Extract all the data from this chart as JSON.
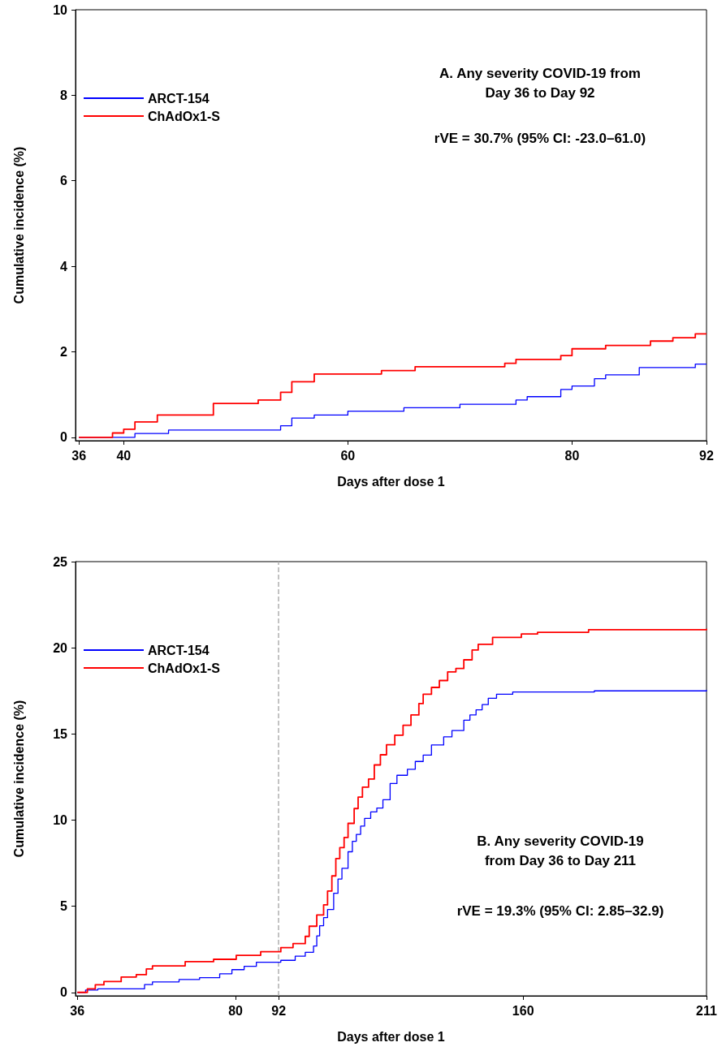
{
  "chart_data": [
    {
      "type": "step",
      "xlabel": "Days after dose 1",
      "ylabel": "Cumulative incidence (%)",
      "annotations": [
        "A. Any severity COVID-19 from\nDay 36 to Day 92",
        "rVE = 30.7% (95% CI: -23.0–61.0)"
      ],
      "xlim": [
        35.7,
        92
      ],
      "xticks": [
        36,
        40,
        60,
        80,
        92
      ],
      "ylim": [
        -0.08,
        10
      ],
      "yticks": [
        0,
        2,
        4,
        6,
        8,
        10
      ],
      "legend": "top left",
      "grid": false,
      "series": [
        {
          "name": "ARCT-154",
          "color": "#0000ff",
          "x": [
            36,
            41,
            44,
            54,
            55,
            57,
            60,
            65,
            70,
            75,
            76,
            79,
            80,
            82,
            83,
            86,
            91,
            92
          ],
          "values": [
            0,
            0.09,
            0.17,
            0.27,
            0.45,
            0.52,
            0.61,
            0.69,
            0.77,
            0.87,
            0.95,
            1.12,
            1.2,
            1.37,
            1.46,
            1.63,
            1.71,
            1.71
          ]
        },
        {
          "name": "ChAdOx1-S",
          "color": "#ff0000",
          "x": [
            36,
            39,
            40,
            41,
            43,
            48,
            52,
            54,
            55,
            57,
            63,
            66,
            74,
            75,
            79,
            80,
            83,
            87,
            89,
            91,
            92
          ],
          "values": [
            0,
            0.1,
            0.19,
            0.36,
            0.52,
            0.79,
            0.87,
            1.05,
            1.3,
            1.48,
            1.56,
            1.65,
            1.73,
            1.82,
            1.91,
            2.07,
            2.15,
            2.25,
            2.33,
            2.42,
            2.42
          ]
        }
      ]
    },
    {
      "type": "step",
      "xlabel": "Days after dose 1",
      "ylabel": "Cumulative incidence (%)",
      "annotations": [
        "B. Any severity COVID-19\nfrom Day 36 to Day 211",
        "rVE = 19.3% (95% CI: 2.85–32.9)"
      ],
      "xlim": [
        35.5,
        211
      ],
      "xticks": [
        36,
        80,
        92,
        160,
        211
      ],
      "ylim": [
        -0.2,
        25
      ],
      "yticks": [
        0,
        5,
        10,
        15,
        20,
        25
      ],
      "legend": "top left",
      "grid": false,
      "ref_lines": [
        {
          "axis": "x",
          "value": 92,
          "color": "#b0b0b0",
          "line_style": "dashed"
        }
      ],
      "series": [
        {
          "name": "ARCT-154",
          "color": "#0000ff",
          "x": [
            36,
            38.3,
            41.7,
            54.7,
            56.9,
            64.3,
            70,
            75.6,
            79,
            82.4,
            85.8,
            92.6,
            96.6,
            99.4,
            101.7,
            102.6,
            103.4,
            104.5,
            105.6,
            107.3,
            108.5,
            109.6,
            111.3,
            112.5,
            113.6,
            114.8,
            115.9,
            117.6,
            119.3,
            121,
            123,
            124.9,
            127.8,
            130,
            132.2,
            134.5,
            137.9,
            140.2,
            143.5,
            145.2,
            146.9,
            148.6,
            150.3,
            152.6,
            157.1,
            179.8,
            211
          ],
          "values": [
            0,
            0.14,
            0.21,
            0.45,
            0.61,
            0.75,
            0.85,
            1.08,
            1.32,
            1.51,
            1.75,
            1.86,
            2.1,
            2.33,
            2.69,
            3.28,
            3.87,
            4.34,
            4.81,
            5.75,
            6.58,
            7.2,
            8.16,
            8.77,
            9.17,
            9.65,
            10.1,
            10.47,
            10.7,
            11.18,
            12.12,
            12.6,
            12.95,
            13.4,
            13.77,
            14.36,
            14.83,
            15.2,
            15.8,
            16.1,
            16.4,
            16.7,
            17.07,
            17.3,
            17.43,
            17.5,
            17.55
          ]
        },
        {
          "name": "ChAdOx1-S",
          "color": "#ff0000",
          "x": [
            36,
            38.8,
            41,
            43.4,
            48.2,
            52.4,
            55.2,
            56.9,
            66,
            73.9,
            80.2,
            87,
            92.6,
            96,
            99.4,
            100.5,
            102.6,
            104.5,
            105.6,
            106.8,
            107.9,
            109,
            110.2,
            111.3,
            113,
            114.1,
            115.3,
            117,
            118.6,
            120.3,
            122,
            124.3,
            126.6,
            128.8,
            131,
            132.2,
            134.5,
            136.7,
            139,
            141.3,
            143.5,
            145.8,
            147.5,
            151.5,
            159.5,
            164,
            178.2,
            211
          ],
          "values": [
            0,
            0.21,
            0.44,
            0.63,
            0.89,
            1.03,
            1.36,
            1.54,
            1.78,
            1.92,
            2.15,
            2.36,
            2.6,
            2.83,
            3.25,
            3.84,
            4.49,
            5.08,
            5.88,
            6.76,
            7.77,
            8.4,
            8.99,
            9.81,
            10.67,
            11.33,
            11.91,
            12.38,
            13.2,
            13.79,
            14.37,
            14.93,
            15.5,
            16.1,
            16.76,
            17.3,
            17.7,
            18.1,
            18.6,
            18.8,
            19.3,
            19.87,
            20.2,
            20.6,
            20.8,
            20.9,
            21.05,
            21.1
          ]
        }
      ]
    }
  ]
}
